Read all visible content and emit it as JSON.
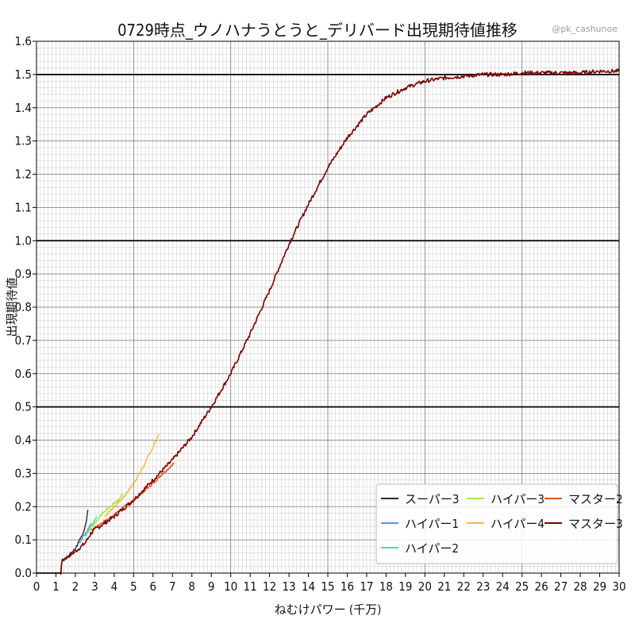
{
  "chart_data": {
    "type": "line",
    "title": "0729時点_ウノハナうとうと_デリバード出現期待値推移",
    "watermark": "@pk_cashunoe",
    "xlabel": "ねむけパワー (千万)",
    "ylabel": "出現期待値",
    "xlim": [
      0,
      30
    ],
    "ylim": [
      0,
      1.6
    ],
    "x_ticks": [
      "0",
      "1",
      "2",
      "3",
      "4",
      "5",
      "6",
      "7",
      "8",
      "9",
      "10",
      "11",
      "12",
      "13",
      "14",
      "15",
      "16",
      "17",
      "18",
      "19",
      "20",
      "21",
      "22",
      "23",
      "24",
      "25",
      "26",
      "27",
      "28",
      "29",
      "30"
    ],
    "y_ticks": [
      "0.0",
      "0.1",
      "0.2",
      "0.3",
      "0.4",
      "0.5",
      "0.6",
      "0.7",
      "0.8",
      "0.9",
      "1.0",
      "1.1",
      "1.2",
      "1.3",
      "1.4",
      "1.5",
      "1.6"
    ],
    "reference_lines_y": [
      0.5,
      1.0,
      1.5
    ],
    "grid": "major and minor",
    "legend_position": "bottom-right",
    "series": [
      {
        "name": "スーパー3",
        "color": "#2b2b2b",
        "x": [
          0,
          1.25,
          1.3,
          1.5,
          1.8,
          2.0,
          2.2,
          2.4,
          2.55,
          2.65
        ],
        "y": [
          0,
          0,
          0.035,
          0.045,
          0.06,
          0.075,
          0.095,
          0.12,
          0.15,
          0.19
        ]
      },
      {
        "name": "ハイパー1",
        "color": "#5a9bd5",
        "x": [
          2.2,
          2.4,
          2.6,
          2.8
        ],
        "y": [
          0.09,
          0.11,
          0.125,
          0.15
        ]
      },
      {
        "name": "ハイパー2",
        "color": "#3fe0b0",
        "x": [
          2.5,
          2.7,
          2.9,
          3.1
        ],
        "y": [
          0.11,
          0.13,
          0.15,
          0.17
        ]
      },
      {
        "name": "ハイパー3",
        "color": "#a6e84a",
        "x": [
          2.6,
          3.0,
          3.4,
          3.8,
          4.2,
          4.45
        ],
        "y": [
          0.12,
          0.15,
          0.18,
          0.2,
          0.22,
          0.24
        ]
      },
      {
        "name": "ハイパー4",
        "color": "#f5b940",
        "x": [
          3.5,
          4.0,
          4.5,
          5.0,
          5.5,
          6.0,
          6.3
        ],
        "y": [
          0.17,
          0.2,
          0.23,
          0.27,
          0.32,
          0.38,
          0.42
        ]
      },
      {
        "name": "マスター2",
        "color": "#e8561c",
        "x": [
          2.8,
          3.5,
          4.0,
          4.5,
          5.0,
          5.5,
          6.0,
          6.5,
          7.1
        ],
        "y": [
          0.13,
          0.155,
          0.175,
          0.2,
          0.22,
          0.245,
          0.27,
          0.3,
          0.33
        ]
      },
      {
        "name": "マスター3",
        "color": "#7a0000",
        "x": [
          0,
          1.25,
          1.3,
          1.5,
          2.0,
          2.5,
          2.8,
          3.0,
          4.0,
          5.0,
          6.0,
          7.0,
          8.0,
          9.0,
          10.0,
          11.0,
          12.0,
          13.0,
          14.0,
          15.0,
          16.0,
          17.0,
          18.0,
          19.0,
          20.0,
          21.0,
          22.0,
          23.0,
          24.0,
          25.0,
          26.0,
          27.0,
          28.0,
          29.0,
          30.0
        ],
        "y": [
          0,
          0,
          0.035,
          0.045,
          0.065,
          0.09,
          0.12,
          0.13,
          0.17,
          0.22,
          0.28,
          0.34,
          0.41,
          0.5,
          0.6,
          0.72,
          0.85,
          0.99,
          1.11,
          1.22,
          1.31,
          1.38,
          1.43,
          1.46,
          1.48,
          1.49,
          1.495,
          1.5,
          1.5,
          1.505,
          1.505,
          1.505,
          1.505,
          1.51,
          1.51
        ]
      }
    ]
  }
}
